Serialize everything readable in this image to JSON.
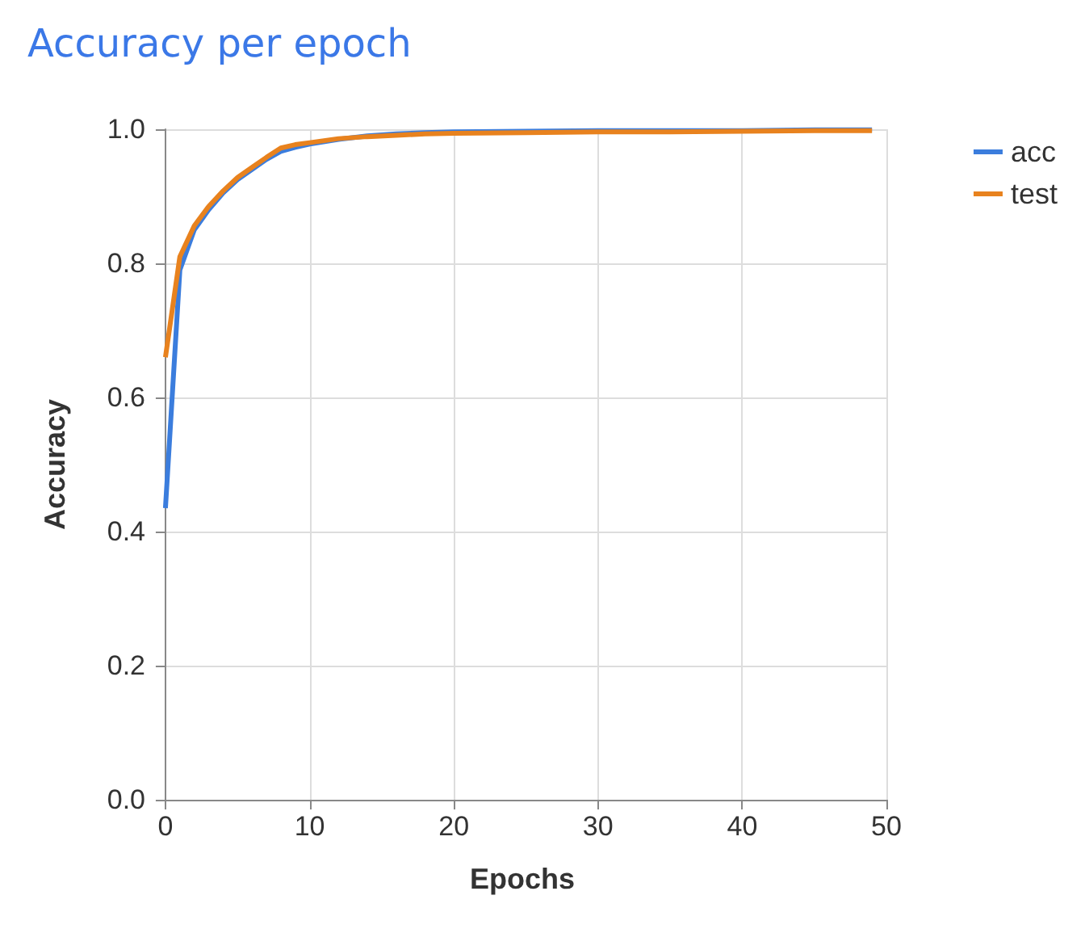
{
  "chart_data": {
    "type": "line",
    "title": "Accuracy per epoch",
    "xlabel": "Epochs",
    "ylabel": "Accuracy",
    "x": [
      0,
      1,
      2,
      3,
      4,
      5,
      6,
      7,
      8,
      9,
      10,
      12,
      14,
      16,
      18,
      20,
      25,
      30,
      35,
      40,
      45,
      49
    ],
    "series": [
      {
        "name": "acc",
        "color": "#3b7ddd",
        "values": [
          0.435,
          0.79,
          0.85,
          0.88,
          0.905,
          0.925,
          0.94,
          0.955,
          0.967,
          0.973,
          0.978,
          0.985,
          0.99,
          0.993,
          0.995,
          0.996,
          0.997,
          0.998,
          0.998,
          0.998,
          0.999,
          0.999
        ]
      },
      {
        "name": "test",
        "color": "#e8821e",
        "values": [
          0.66,
          0.81,
          0.856,
          0.885,
          0.908,
          0.928,
          0.943,
          0.958,
          0.972,
          0.977,
          0.98,
          0.986,
          0.989,
          0.991,
          0.993,
          0.994,
          0.995,
          0.996,
          0.996,
          0.997,
          0.998,
          0.998
        ]
      }
    ],
    "xlim": [
      -0.5,
      50
    ],
    "xticks": [
      0,
      10,
      20,
      30,
      40,
      50
    ],
    "ylim": [
      0,
      1
    ],
    "yticks": [
      {
        "value": 0,
        "label": "0.0"
      },
      0.2,
      0.4,
      0.6,
      0.8,
      {
        "value": 1,
        "label": "1.0"
      }
    ],
    "grid": true,
    "legend": "top right",
    "marker": "none",
    "line_style": "solid"
  }
}
